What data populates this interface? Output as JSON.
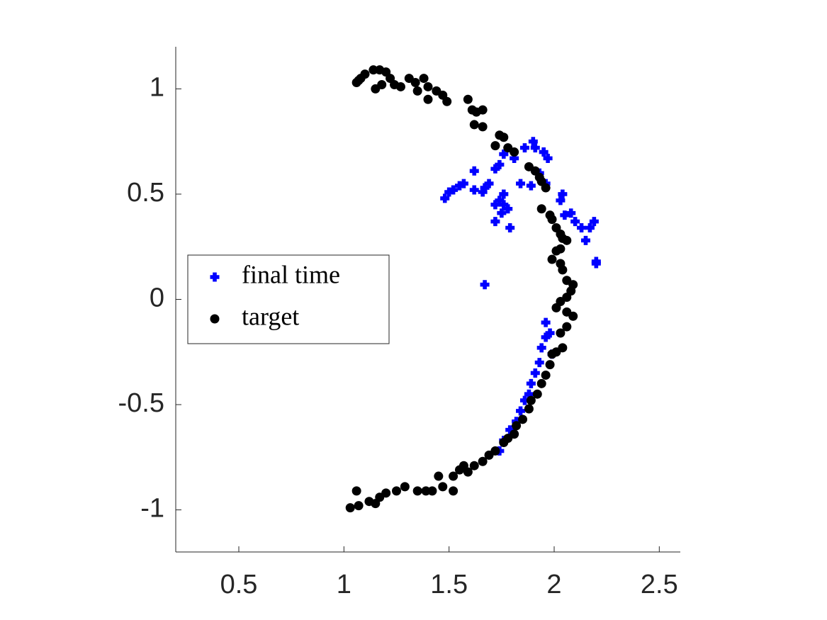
{
  "chart_data": {
    "type": "scatter",
    "xlim": [
      0.2,
      2.6
    ],
    "ylim": [
      -1.2,
      1.2
    ],
    "xticks": [
      0.5,
      1,
      1.5,
      2,
      2.5
    ],
    "yticks": [
      -1,
      -0.5,
      0,
      0.5,
      1
    ],
    "legend": "west",
    "series": [
      {
        "name": "final time",
        "color": "#0000ff",
        "marker": "plus",
        "x": [
          1.48,
          1.5,
          1.52,
          1.55,
          1.57,
          1.62,
          1.62,
          1.67,
          1.66,
          1.69,
          1.72,
          1.74,
          1.76,
          1.81,
          1.86,
          1.9,
          1.91,
          1.95,
          1.97,
          1.84,
          1.89,
          1.96,
          1.93,
          1.72,
          1.74,
          1.76,
          1.78,
          1.75,
          1.79,
          1.72,
          1.76,
          2.04,
          2.03,
          2.08,
          2.1,
          2.13,
          2.15,
          2.19,
          2.17,
          2.2,
          2.2,
          2.05,
          1.67,
          1.96,
          1.94,
          1.93,
          1.91,
          1.89,
          1.88,
          1.86,
          1.84,
          1.82,
          1.79,
          1.76,
          1.74,
          1.96,
          1.98,
          1.99
        ],
        "y": [
          0.48,
          0.51,
          0.52,
          0.54,
          0.55,
          0.61,
          0.52,
          0.53,
          0.51,
          0.55,
          0.62,
          0.64,
          0.69,
          0.67,
          0.72,
          0.75,
          0.72,
          0.7,
          0.67,
          0.55,
          0.54,
          0.55,
          0.6,
          0.45,
          0.47,
          0.5,
          0.43,
          0.41,
          0.34,
          0.37,
          0.45,
          0.5,
          0.47,
          0.41,
          0.37,
          0.34,
          0.28,
          0.37,
          0.34,
          0.18,
          0.17,
          0.4,
          0.07,
          -0.18,
          -0.23,
          -0.3,
          -0.35,
          -0.4,
          -0.45,
          -0.48,
          -0.53,
          -0.58,
          -0.62,
          -0.67,
          -0.72,
          -0.11,
          -0.16,
          -0.26
        ]
      },
      {
        "name": "target",
        "color": "#000000",
        "marker": "circle",
        "x": [
          1.07,
          1.06,
          1.08,
          1.1,
          1.14,
          1.17,
          1.2,
          1.22,
          1.18,
          1.15,
          1.24,
          1.27,
          1.31,
          1.34,
          1.38,
          1.35,
          1.4,
          1.4,
          1.44,
          1.47,
          1.49,
          1.59,
          1.61,
          1.63,
          1.66,
          1.66,
          1.62,
          1.74,
          1.76,
          1.72,
          1.78,
          1.81,
          1.88,
          1.91,
          1.93,
          1.94,
          1.96,
          1.94,
          1.98,
          1.99,
          2.01,
          2.03,
          2.04,
          2.03,
          2.01,
          2.06,
          1.99,
          2.03,
          2.04,
          2.06,
          2.09,
          2.08,
          2.06,
          2.03,
          2.01,
          2.06,
          2.09,
          2.06,
          2.03,
          2.04,
          2.01,
          1.99,
          1.98,
          1.96,
          1.94,
          1.92,
          1.89,
          1.88,
          1.85,
          1.82,
          1.81,
          1.78,
          1.76,
          1.72,
          1.69,
          1.66,
          1.62,
          1.59,
          1.55,
          1.52,
          1.47,
          1.42,
          1.39,
          1.35,
          1.29,
          1.25,
          1.2,
          1.17,
          1.15,
          1.12,
          1.07,
          1.03,
          1.06,
          1.52,
          1.45,
          1.57
        ],
        "y": [
          1.04,
          1.03,
          1.05,
          1.07,
          1.09,
          1.09,
          1.08,
          1.05,
          1.02,
          1.0,
          1.02,
          1.01,
          1.05,
          1.03,
          1.05,
          0.99,
          1.01,
          0.95,
          0.99,
          0.97,
          0.94,
          0.95,
          0.9,
          0.89,
          0.9,
          0.82,
          0.83,
          0.78,
          0.77,
          0.73,
          0.72,
          0.7,
          0.63,
          0.61,
          0.58,
          0.56,
          0.53,
          0.43,
          0.4,
          0.38,
          0.34,
          0.31,
          0.29,
          0.24,
          0.23,
          0.28,
          0.19,
          0.17,
          0.14,
          0.09,
          0.07,
          0.04,
          0.01,
          -0.01,
          -0.04,
          -0.06,
          -0.08,
          -0.13,
          -0.16,
          -0.23,
          -0.25,
          -0.26,
          -0.31,
          -0.36,
          -0.4,
          -0.45,
          -0.48,
          -0.52,
          -0.57,
          -0.6,
          -0.64,
          -0.66,
          -0.68,
          -0.72,
          -0.74,
          -0.77,
          -0.79,
          -0.82,
          -0.81,
          -0.84,
          -0.89,
          -0.91,
          -0.91,
          -0.91,
          -0.89,
          -0.91,
          -0.92,
          -0.94,
          -0.97,
          -0.96,
          -0.98,
          -0.99,
          -0.91,
          -0.91,
          -0.84,
          -0.79
        ]
      }
    ]
  }
}
